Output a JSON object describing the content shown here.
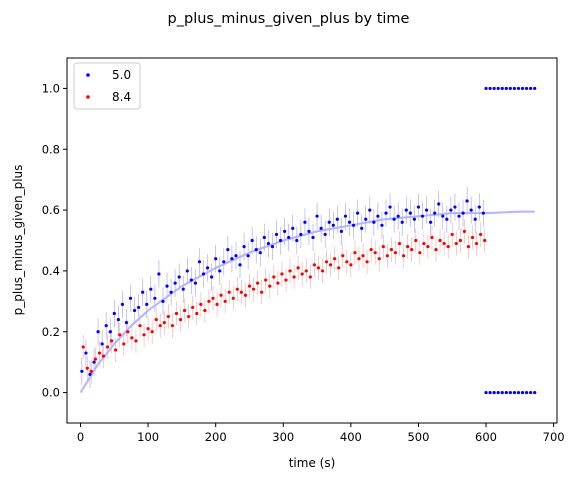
{
  "chart_data": {
    "type": "scatter",
    "title": "p_plus_minus_given_plus by time",
    "xlabel": "time (s)",
    "ylabel": "p_plus_minus_given_plus",
    "xlim": [
      -20,
      705
    ],
    "ylim": [
      -0.1,
      1.1
    ],
    "x_ticks": [
      0,
      100,
      200,
      300,
      400,
      500,
      600,
      700
    ],
    "y_ticks": [
      0.0,
      0.2,
      0.4,
      0.6,
      0.8,
      1.0
    ],
    "x_tick_labels": [
      "0",
      "100",
      "200",
      "300",
      "400",
      "500",
      "600",
      "700"
    ],
    "y_tick_labels": [
      "0.0",
      "0.2",
      "0.4",
      "0.6",
      "0.8",
      "1.0"
    ],
    "grid": false,
    "legend_position": "top-left",
    "series": [
      {
        "name": "5.0",
        "color": "#0000ff",
        "error_color": "#7777ee",
        "x": [
          2,
          8,
          14,
          20,
          26,
          32,
          38,
          44,
          50,
          56,
          62,
          68,
          74,
          80,
          86,
          92,
          98,
          104,
          110,
          116,
          122,
          128,
          134,
          140,
          146,
          152,
          158,
          164,
          170,
          176,
          182,
          188,
          194,
          200,
          206,
          212,
          218,
          224,
          230,
          236,
          242,
          248,
          254,
          260,
          266,
          272,
          278,
          284,
          290,
          296,
          302,
          308,
          314,
          320,
          326,
          332,
          338,
          344,
          350,
          356,
          362,
          368,
          374,
          380,
          386,
          392,
          398,
          404,
          410,
          416,
          422,
          428,
          434,
          440,
          446,
          452,
          458,
          464,
          470,
          476,
          482,
          488,
          494,
          500,
          506,
          512,
          518,
          524,
          530,
          536,
          542,
          548,
          554,
          560,
          566,
          572,
          578,
          584,
          590,
          596
        ],
        "y": [
          0.07,
          0.13,
          0.06,
          0.1,
          0.2,
          0.16,
          0.22,
          0.2,
          0.26,
          0.24,
          0.29,
          0.23,
          0.31,
          0.27,
          0.28,
          0.33,
          0.29,
          0.34,
          0.31,
          0.39,
          0.3,
          0.35,
          0.33,
          0.36,
          0.38,
          0.34,
          0.4,
          0.37,
          0.36,
          0.43,
          0.39,
          0.41,
          0.38,
          0.44,
          0.4,
          0.43,
          0.47,
          0.44,
          0.45,
          0.42,
          0.48,
          0.45,
          0.5,
          0.47,
          0.46,
          0.51,
          0.49,
          0.48,
          0.52,
          0.5,
          0.53,
          0.51,
          0.54,
          0.5,
          0.52,
          0.56,
          0.53,
          0.51,
          0.58,
          0.54,
          0.52,
          0.56,
          0.55,
          0.57,
          0.53,
          0.58,
          0.56,
          0.55,
          0.59,
          0.54,
          0.57,
          0.6,
          0.56,
          0.58,
          0.55,
          0.59,
          0.61,
          0.57,
          0.58,
          0.56,
          0.6,
          0.59,
          0.57,
          0.61,
          0.58,
          0.6,
          0.56,
          0.59,
          0.62,
          0.58,
          0.57,
          0.6,
          0.61,
          0.58,
          0.59,
          0.63,
          0.6,
          0.57,
          0.61,
          0.59
        ],
        "err": 0.045,
        "x_extra": [
          600,
          606,
          612,
          618,
          624,
          630,
          636,
          642,
          648,
          654,
          660,
          666,
          672,
          600,
          606,
          612,
          618,
          624,
          630,
          636,
          642,
          648,
          654,
          660,
          666,
          672
        ],
        "y_extra": [
          1.0,
          1.0,
          1.0,
          1.0,
          1.0,
          1.0,
          1.0,
          1.0,
          1.0,
          1.0,
          1.0,
          1.0,
          1.0,
          0.0,
          0.0,
          0.0,
          0.0,
          0.0,
          0.0,
          0.0,
          0.0,
          0.0,
          0.0,
          0.0,
          0.0,
          0.0
        ]
      },
      {
        "name": "8.4",
        "color": "#ff0000",
        "error_color": "#ee8888",
        "x": [
          4,
          10,
          16,
          22,
          28,
          34,
          40,
          46,
          52,
          58,
          64,
          70,
          76,
          82,
          88,
          94,
          100,
          106,
          112,
          118,
          124,
          130,
          136,
          142,
          148,
          154,
          160,
          166,
          172,
          178,
          184,
          190,
          196,
          202,
          208,
          214,
          220,
          226,
          232,
          238,
          244,
          250,
          256,
          262,
          268,
          274,
          280,
          286,
          292,
          298,
          304,
          310,
          316,
          322,
          328,
          334,
          340,
          346,
          352,
          358,
          364,
          370,
          376,
          382,
          388,
          394,
          400,
          406,
          412,
          418,
          424,
          430,
          436,
          442,
          448,
          454,
          460,
          466,
          472,
          478,
          484,
          490,
          496,
          502,
          508,
          514,
          520,
          526,
          532,
          538,
          544,
          550,
          556,
          562,
          568,
          574,
          580,
          586,
          592,
          598
        ],
        "y": [
          0.15,
          0.08,
          0.07,
          0.11,
          0.13,
          0.12,
          0.15,
          0.17,
          0.14,
          0.19,
          0.16,
          0.2,
          0.18,
          0.17,
          0.22,
          0.19,
          0.21,
          0.2,
          0.24,
          0.22,
          0.23,
          0.25,
          0.22,
          0.26,
          0.24,
          0.27,
          0.25,
          0.28,
          0.26,
          0.29,
          0.27,
          0.3,
          0.31,
          0.29,
          0.32,
          0.3,
          0.33,
          0.31,
          0.34,
          0.33,
          0.32,
          0.35,
          0.34,
          0.36,
          0.33,
          0.37,
          0.35,
          0.38,
          0.36,
          0.39,
          0.37,
          0.4,
          0.38,
          0.41,
          0.39,
          0.4,
          0.38,
          0.42,
          0.41,
          0.4,
          0.43,
          0.42,
          0.44,
          0.41,
          0.45,
          0.43,
          0.42,
          0.46,
          0.44,
          0.45,
          0.43,
          0.47,
          0.46,
          0.44,
          0.48,
          0.45,
          0.47,
          0.46,
          0.49,
          0.45,
          0.48,
          0.47,
          0.5,
          0.46,
          0.49,
          0.48,
          0.51,
          0.47,
          0.5,
          0.49,
          0.48,
          0.52,
          0.49,
          0.5,
          0.53,
          0.48,
          0.51,
          0.49,
          0.52,
          0.5
        ],
        "err": 0.04
      }
    ],
    "fit_line": {
      "color": "#b3b3ff",
      "x": [
        0,
        25,
        50,
        75,
        100,
        150,
        200,
        250,
        300,
        350,
        400,
        450,
        500,
        550,
        600,
        650,
        672
      ],
      "y": [
        0.0,
        0.09,
        0.16,
        0.22,
        0.27,
        0.35,
        0.41,
        0.46,
        0.5,
        0.53,
        0.55,
        0.57,
        0.58,
        0.59,
        0.59,
        0.595,
        0.595
      ]
    }
  }
}
